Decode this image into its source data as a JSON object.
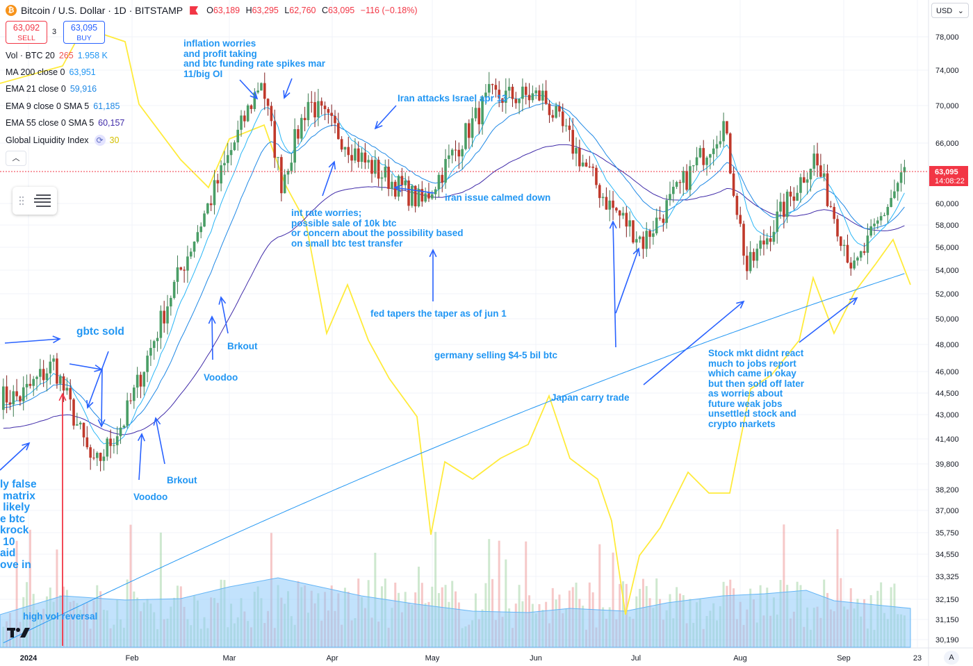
{
  "header": {
    "icon": "bitcoin-icon",
    "title": "Bitcoin / U.S. Dollar · 1D · BITSTAMP",
    "ohlc": {
      "o_label": "O",
      "o": "63,189",
      "h_label": "H",
      "h": "63,295",
      "l_label": "L",
      "l": "62,760",
      "c_label": "C",
      "c": "63,095",
      "change": "−116 (−0.18%)"
    }
  },
  "trade": {
    "sell_price": "63,092",
    "sell_label": "SELL",
    "spread": "3",
    "buy_price": "63,095",
    "buy_label": "BUY"
  },
  "indicators": [
    {
      "label": "Vol · BTC 20",
      "value1": "265",
      "value2": "1.958 K",
      "color1": "#ef5350",
      "color2": "#2196f3"
    },
    {
      "label": "MA 200 close 0",
      "value1": "63,951",
      "color1": "#2196f3"
    },
    {
      "label": "EMA 21 close 0",
      "value1": "59,916",
      "color1": "#1e88e5"
    },
    {
      "label": "EMA 9 close 0 SMA 5",
      "value1": "61,185",
      "color1": "#1e88e5"
    },
    {
      "label": "EMA 55 close 0 SMA 5",
      "value1": "60,157",
      "color1": "#3f2aa8"
    },
    {
      "label": "Global Liquidity Index",
      "value1": "30",
      "color1": "#ffeb3b"
    }
  ],
  "price_axis": {
    "currency": "USD",
    "ticks": [
      "78,000",
      "74,000",
      "70,000",
      "66,000",
      "63,095",
      "60,000",
      "58,000",
      "56,000",
      "54,000",
      "52,000",
      "50,000",
      "48,000",
      "46,000",
      "44,500",
      "43,000",
      "41,400",
      "39,800",
      "38,200",
      "37,000",
      "35,750",
      "34,550",
      "33,325",
      "32,150",
      "31,150",
      "30,190"
    ],
    "current_price": "63,095",
    "countdown": "14:08:22"
  },
  "time_axis": {
    "labels": [
      "2024",
      "Feb",
      "Mar",
      "Apr",
      "May",
      "Jun",
      "Jul",
      "Aug",
      "Sep",
      "23"
    ],
    "auto_label": "A"
  },
  "annotations": [
    {
      "id": "gbtc-sold",
      "text": "gbtc sold"
    },
    {
      "id": "inflation",
      "text": "inflation worries\nand profit taking\nand btc funding rate spikes mar\n11/big OI"
    },
    {
      "id": "iran-attacks",
      "text": "Iran attacks Israel apr 13"
    },
    {
      "id": "iran-calmed",
      "text": "iran issue calmed down"
    },
    {
      "id": "int-rate",
      "text": "int rate worries;\npossible sale of 10k btc\nor concern about the possibility based\non small btc test transfer"
    },
    {
      "id": "fed-tapers",
      "text": "fed tapers the taper as of jun 1"
    },
    {
      "id": "germany",
      "text": "germany selling $4-5 bil btc"
    },
    {
      "id": "japan",
      "text": "Japan carry trade"
    },
    {
      "id": "stock-mkt",
      "text": "Stock mkt didnt react\nmuch to jobs report\nwhich came in okay\nbut then sold off later\nas worries about\nfuture weak jobs\nunsettled stock and\ncrypto markets"
    },
    {
      "id": "brkout-1",
      "text": "Brkout"
    },
    {
      "id": "voodoo-1",
      "text": "Voodoo"
    },
    {
      "id": "brkout-2",
      "text": "Brkout"
    },
    {
      "id": "voodoo-2",
      "text": "Voodoo"
    },
    {
      "id": "left-cut",
      "text": "ly false\n matrix\n likely\ne btc\nkrock\n 10\naid\nove in"
    },
    {
      "id": "high-vol",
      "text": "high vol reversal"
    }
  ],
  "colors": {
    "up": "#26a69a",
    "up_body": "#4a9e66",
    "down": "#ef5350",
    "down_body": "#c0392b",
    "ma200": "#2196f3",
    "ema21": "#1e88e5",
    "ema9": "#29b6f6",
    "ema55": "#3f2aa8",
    "gli": "#ffeb3b",
    "volume_ma": "#64b5f6",
    "annotation": "#2196f3",
    "price_label": "#f23645"
  },
  "chart_data": {
    "type": "candlestick",
    "title": "Bitcoin / U.S. Dollar · 1D · BITSTAMP",
    "x_start": "2023-12-26",
    "x_end": "2024-09-21",
    "ylim": [
      30190,
      78000
    ],
    "y_scale": "log",
    "monthly_points": [
      {
        "date": "2024-01-01",
        "price": 44200
      },
      {
        "date": "2024-01-11",
        "price": 46600
      },
      {
        "date": "2024-01-23",
        "price": 39500
      },
      {
        "date": "2024-02-01",
        "price": 42600
      },
      {
        "date": "2024-02-15",
        "price": 52000
      },
      {
        "date": "2024-02-29",
        "price": 62000
      },
      {
        "date": "2024-03-13",
        "price": 73000
      },
      {
        "date": "2024-03-19",
        "price": 62000
      },
      {
        "date": "2024-03-27",
        "price": 70500
      },
      {
        "date": "2024-04-13",
        "price": 64000
      },
      {
        "date": "2024-04-30",
        "price": 60000
      },
      {
        "date": "2024-05-20",
        "price": 71000
      },
      {
        "date": "2024-06-05",
        "price": 71000
      },
      {
        "date": "2024-06-24",
        "price": 60200
      },
      {
        "date": "2024-07-05",
        "price": 56500
      },
      {
        "date": "2024-07-29",
        "price": 68000
      },
      {
        "date": "2024-08-05",
        "price": 54000
      },
      {
        "date": "2024-08-25",
        "price": 64500
      },
      {
        "date": "2024-09-06",
        "price": 53900
      },
      {
        "date": "2024-09-21",
        "price": 63095
      }
    ],
    "series": [
      {
        "name": "MA 200 close 0",
        "last": 63951
      },
      {
        "name": "EMA 21 close 0",
        "last": 59916
      },
      {
        "name": "EMA 9 close 0 SMA 5",
        "last": 61185
      },
      {
        "name": "EMA 55 close 0 SMA 5",
        "last": 60157
      },
      {
        "name": "Global Liquidity Index",
        "last": 30
      }
    ],
    "volume_last": "1.958 K"
  }
}
